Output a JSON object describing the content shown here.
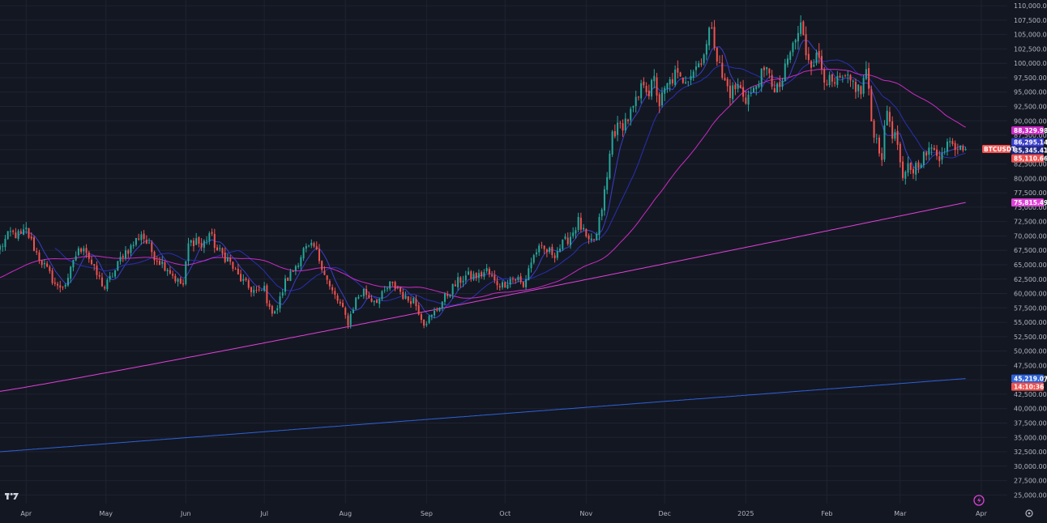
{
  "chart_data": {
    "type": "candlestick",
    "symbol": "BTCUSDT",
    "countdown": "14:10:36",
    "colors": {
      "background": "#131722",
      "grid": "#1f2330",
      "up": "#26a69a",
      "down": "#ef5350",
      "ma_fast": "#3b3fc9",
      "ma_mid": "#2a2fb0",
      "ma_slow": "#cc2bc4",
      "ma_long": "#e040d8",
      "ma_very_long": "#2e62d8"
    },
    "ylim": [
      23500,
      111000
    ],
    "y_ticks": [
      "25,000.00",
      "27,500.00",
      "30,000.00",
      "32,500.00",
      "35,000.00",
      "37,500.00",
      "40,000.00",
      "42,500.00",
      "45,000.00",
      "47,500.00",
      "50,000.00",
      "52,500.00",
      "55,000.00",
      "57,500.00",
      "60,000.00",
      "62,500.00",
      "65,000.00",
      "67,500.00",
      "70,000.00",
      "72,500.00",
      "75,000.00",
      "77,500.00",
      "80,000.00",
      "82,500.00",
      "85,000.00",
      "87,500.00",
      "90,000.00",
      "92,500.00",
      "95,000.00",
      "97,500.00",
      "100,000.00",
      "102,500.00",
      "105,000.00",
      "107,500.00",
      "110,000.00"
    ],
    "x_ticks": [
      {
        "label": "Apr",
        "x": 10
      },
      {
        "label": "May",
        "x": 40.5
      },
      {
        "label": "Jun",
        "x": 71
      },
      {
        "label": "Jul",
        "x": 101
      },
      {
        "label": "Aug",
        "x": 132
      },
      {
        "label": "Sep",
        "x": 163
      },
      {
        "label": "Oct",
        "x": 193
      },
      {
        "label": "Nov",
        "x": 224
      },
      {
        "label": "Dec",
        "x": 254
      },
      {
        "label": "2025",
        "x": 285
      },
      {
        "label": "Feb",
        "x": 316
      },
      {
        "label": "Mar",
        "x": 344
      },
      {
        "label": "Apr",
        "x": 375
      }
    ],
    "xlim": [
      0,
      384
    ],
    "anchors": [
      [
        0,
        68000
      ],
      [
        4,
        70500
      ],
      [
        8,
        70000
      ],
      [
        10,
        71000
      ],
      [
        14,
        67000
      ],
      [
        18,
        64000
      ],
      [
        22,
        61000
      ],
      [
        26,
        62000
      ],
      [
        28,
        66000
      ],
      [
        32,
        68500
      ],
      [
        36,
        64000
      ],
      [
        40,
        61000
      ],
      [
        44,
        64000
      ],
      [
        47,
        67000
      ],
      [
        50,
        68000
      ],
      [
        54,
        70500
      ],
      [
        57,
        68000
      ],
      [
        60,
        66000
      ],
      [
        64,
        64500
      ],
      [
        68,
        62000
      ],
      [
        70,
        61500
      ],
      [
        72,
        68500
      ],
      [
        75,
        69500
      ],
      [
        77,
        68000
      ],
      [
        80,
        70500
      ],
      [
        83,
        67500
      ],
      [
        87,
        66000
      ],
      [
        91,
        63000
      ],
      [
        95,
        61000
      ],
      [
        99,
        60000
      ],
      [
        101,
        61000
      ],
      [
        103,
        57000
      ],
      [
        106,
        57500
      ],
      [
        109,
        62000
      ],
      [
        112,
        64000
      ],
      [
        116,
        67500
      ],
      [
        120,
        68000
      ],
      [
        123,
        65000
      ],
      [
        126,
        61000
      ],
      [
        130,
        58000
      ],
      [
        133,
        55000
      ],
      [
        136,
        59000
      ],
      [
        139,
        60500
      ],
      [
        142,
        59000
      ],
      [
        145,
        59000
      ],
      [
        149,
        61500
      ],
      [
        152,
        61000
      ],
      [
        155,
        59000
      ],
      [
        158,
        59000
      ],
      [
        162,
        55000
      ],
      [
        165,
        56000
      ],
      [
        168,
        58000
      ],
      [
        172,
        60500
      ],
      [
        175,
        62000
      ],
      [
        178,
        63000
      ],
      [
        183,
        63000
      ],
      [
        186,
        64000
      ],
      [
        189,
        62000
      ],
      [
        192,
        61500
      ],
      [
        195,
        62500
      ],
      [
        198,
        62500
      ],
      [
        200,
        61000
      ],
      [
        202,
        64500
      ],
      [
        205,
        67500
      ],
      [
        208,
        67500
      ],
      [
        212,
        67000
      ],
      [
        215,
        68500
      ],
      [
        218,
        70000
      ],
      [
        221,
        72500
      ],
      [
        225,
        68500
      ],
      [
        228,
        70000
      ],
      [
        230,
        75000
      ],
      [
        232,
        80000
      ],
      [
        234,
        88000
      ],
      [
        237,
        89000
      ],
      [
        240,
        90500
      ],
      [
        242,
        92000
      ],
      [
        244,
        94000
      ],
      [
        246,
        97000
      ],
      [
        248,
        95000
      ],
      [
        250,
        97000
      ],
      [
        252,
        93000
      ],
      [
        255,
        96000
      ],
      [
        258,
        98000
      ],
      [
        260,
        97000
      ],
      [
        263,
        98000
      ],
      [
        265,
        99000
      ],
      [
        267,
        100000
      ],
      [
        270,
        103000
      ],
      [
        272,
        107000
      ],
      [
        274,
        101000
      ],
      [
        276,
        97500
      ],
      [
        279,
        95000
      ],
      [
        282,
        96000
      ],
      [
        285,
        94000
      ],
      [
        288,
        95000
      ],
      [
        290,
        97500
      ],
      [
        292,
        98000
      ],
      [
        294,
        99000
      ],
      [
        296,
        94500
      ],
      [
        299,
        97000
      ],
      [
        302,
        102000
      ],
      [
        304,
        104000
      ],
      [
        306,
        106500
      ],
      [
        308,
        102000
      ],
      [
        310,
        100500
      ],
      [
        313,
        101000
      ],
      [
        315,
        98000
      ],
      [
        318,
        96000
      ],
      [
        322,
        97000
      ],
      [
        326,
        96500
      ],
      [
        329,
        95000
      ],
      [
        331,
        99000
      ],
      [
        333,
        90000
      ],
      [
        335,
        86500
      ],
      [
        337,
        84000
      ],
      [
        339,
        92000
      ],
      [
        341,
        88000
      ],
      [
        343,
        86000
      ],
      [
        345,
        79000
      ],
      [
        347,
        82000
      ],
      [
        349,
        81500
      ],
      [
        352,
        83500
      ],
      [
        355,
        84500
      ],
      [
        357,
        85500
      ],
      [
        359,
        84000
      ],
      [
        361,
        84500
      ],
      [
        363,
        87500
      ],
      [
        365,
        85500
      ],
      [
        367,
        86500
      ],
      [
        369,
        85100
      ]
    ],
    "moving_averages": [
      {
        "window": 7,
        "color_key": "ma_fast",
        "start": 7,
        "last": 86295.14
      },
      {
        "window": 21,
        "color_key": "ma_mid",
        "start": 21,
        "last": 88329.98
      },
      {
        "window": 55,
        "color_key": "ma_slow",
        "start": 0,
        "last": 85345.41
      },
      {
        "window": 200,
        "color_key": "ma_long",
        "start": 0,
        "last": 75815.49
      },
      {
        "window": 700,
        "color_key": "ma_very_long",
        "start": 0,
        "last": 45219.07
      }
    ],
    "tags": [
      {
        "text": "88,329.98",
        "value": 88329.98,
        "color": "#cc2bc4"
      },
      {
        "text": "86,295.14",
        "value": 86295.14,
        "color": "#3b3fc9"
      },
      {
        "text": "85,345.41",
        "value": 85345.41,
        "color": "#1e2680"
      },
      {
        "text": "85,110.66",
        "value": 85110.66,
        "color": "#ef5350"
      },
      {
        "text": "75,815.49",
        "value": 75815.49,
        "color": "#e040d8"
      },
      {
        "text": "45,219.07",
        "value": 45219.07,
        "color": "#2e62d8"
      }
    ]
  }
}
